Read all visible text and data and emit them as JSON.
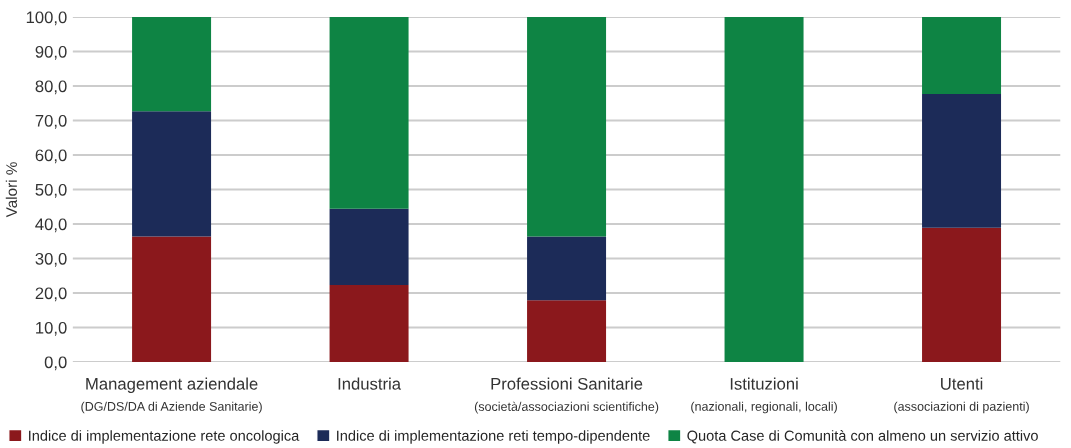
{
  "chart_data": {
    "type": "bar",
    "stacked": true,
    "ylabel": "Valori %",
    "categories": [
      "Management aziendale\n(DG/DS/DA di Aziende Sanitarie)",
      "Industria",
      "Professioni Sanitarie\n(società/associazioni scientifiche)",
      "Istituzioni\n(nazionali, regionali, locali)",
      "Utenti\n(associazioni di pazienti)"
    ],
    "series": [
      {
        "name": "Indice di implementazione rete oncologica",
        "color": "#8b181c",
        "values": [
          36.4,
          22.3,
          17.9,
          0,
          38.9
        ]
      },
      {
        "name": "Indice di implementazione reti tempo-dipendente",
        "color": "#1c2b58",
        "values": [
          36.3,
          22.1,
          18.5,
          0,
          38.8
        ]
      },
      {
        "name": "Quota Case di Comunità con almeno un servizio attivo",
        "color": "#0e8444",
        "values": [
          27.3,
          55.6,
          63.6,
          100,
          22.3
        ]
      }
    ],
    "ylim": [
      0,
      100
    ],
    "yticks": [
      {
        "value": 0,
        "label": "0,0"
      },
      {
        "value": 10,
        "label": "10,0"
      },
      {
        "value": 20,
        "label": "20,0"
      },
      {
        "value": 30,
        "label": "30,0"
      },
      {
        "value": 40,
        "label": "40,0"
      },
      {
        "value": 50,
        "label": "50,0"
      },
      {
        "value": 60,
        "label": "60,0"
      },
      {
        "value": 70,
        "label": "70,0"
      },
      {
        "value": 80,
        "label": "80,0"
      },
      {
        "value": 90,
        "label": "90,0"
      },
      {
        "value": 100,
        "label": "100,0"
      }
    ],
    "grid": "y",
    "legend": "bottom"
  }
}
